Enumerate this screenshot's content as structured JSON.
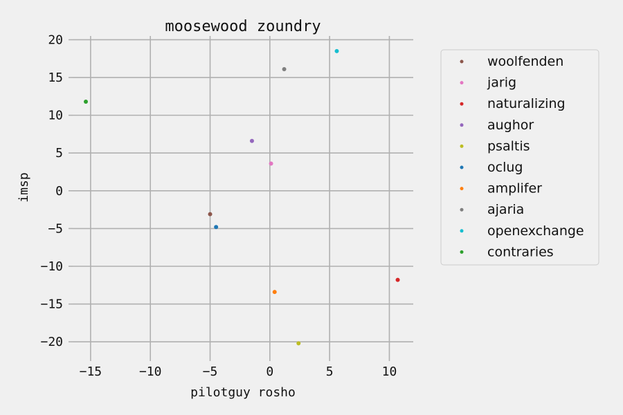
{
  "chart_data": {
    "type": "scatter",
    "title": "moosewood zoundry",
    "xlabel": "pilotguy rosho",
    "ylabel": "imsp",
    "xlim": [
      -16.5,
      12
    ],
    "ylim": [
      -22,
      20.5
    ],
    "xticks": [
      -15,
      -10,
      -5,
      0,
      5,
      10
    ],
    "xtick_labels": [
      "−15",
      "−10",
      "−5",
      "0",
      "5",
      "10"
    ],
    "yticks": [
      20,
      15,
      10,
      5,
      0,
      -5,
      -10,
      -15,
      -20
    ],
    "ytick_labels": [
      "20",
      "15",
      "10",
      "5",
      "0",
      "−5",
      "−10",
      "−15",
      "−20"
    ],
    "grid": true,
    "legend_position": "right",
    "series": [
      {
        "name": "woolfenden",
        "color": "#8c564b",
        "x": [
          -5.0
        ],
        "y": [
          -3.1
        ]
      },
      {
        "name": "jarig",
        "color": "#e377c2",
        "x": [
          0.1
        ],
        "y": [
          3.6
        ]
      },
      {
        "name": "naturalizing",
        "color": "#d62728",
        "x": [
          10.7
        ],
        "y": [
          -11.8
        ]
      },
      {
        "name": "aughor",
        "color": "#9467bd",
        "x": [
          -1.5
        ],
        "y": [
          6.6
        ]
      },
      {
        "name": "psaltis",
        "color": "#bcbd22",
        "x": [
          2.4
        ],
        "y": [
          -20.2
        ]
      },
      {
        "name": "oclug",
        "color": "#1f77b4",
        "x": [
          -4.5
        ],
        "y": [
          -4.8
        ]
      },
      {
        "name": "amplifer",
        "color": "#ff7f0e",
        "x": [
          0.4
        ],
        "y": [
          -13.4
        ]
      },
      {
        "name": "ajaria",
        "color": "#7f7f7f",
        "x": [
          1.2
        ],
        "y": [
          16.1
        ]
      },
      {
        "name": "openexchange",
        "color": "#17becf",
        "x": [
          5.6
        ],
        "y": [
          18.5
        ]
      },
      {
        "name": "contraries",
        "color": "#2ca02c",
        "x": [
          -15.4
        ],
        "y": [
          11.8
        ]
      }
    ]
  }
}
